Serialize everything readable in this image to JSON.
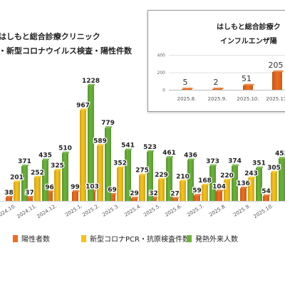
{
  "chart_data": [
    {
      "type": "bar",
      "title": "はしもと総合診療クリニック",
      "subtitle": "・新型コロナウイルス検査・陽性件数",
      "categories": [
        "",
        "2024.10.",
        "2024.11.",
        "2024.12.",
        "2025.1.",
        "2025.2.",
        "2025.3.",
        "2025.4.",
        "2025.5.",
        "2025.6.",
        "2025.7.",
        "2025.8.",
        "2025.9.",
        "2025.10.",
        ""
      ],
      "series": [
        {
          "name": "陽性者数",
          "color": "#ef6d1f",
          "values": [
            null,
            38,
            37,
            96,
            99,
            103,
            69,
            29,
            32,
            27,
            59,
            104,
            136,
            54,
            null
          ]
        },
        {
          "name": "新型コロナPCR・抗原検査件数",
          "color": "#f7c31b",
          "values": [
            null,
            201,
            252,
            325,
            967,
            589,
            352,
            275,
            229,
            210,
            168,
            220,
            243,
            305,
            null
          ]
        },
        {
          "name": "発熱外来人数",
          "color": "#6ab43a",
          "values": [
            null,
            371,
            435,
            510,
            1228,
            779,
            541,
            523,
            461,
            436,
            373,
            374,
            351,
            453,
            null
          ]
        }
      ],
      "legend_position": "bottom"
    },
    {
      "type": "bar",
      "title": "はしもと総合診療ク",
      "subtitle": "インフルエンザ陽",
      "categories": [
        "2025.8.",
        "2025.9.",
        "2025.10.",
        "2025.11."
      ],
      "values": [
        5,
        2,
        51,
        205
      ],
      "yticks": [
        "0",
        "200",
        "400"
      ],
      "ylim": [
        0,
        400
      ],
      "color": "#ef6d1f"
    }
  ]
}
